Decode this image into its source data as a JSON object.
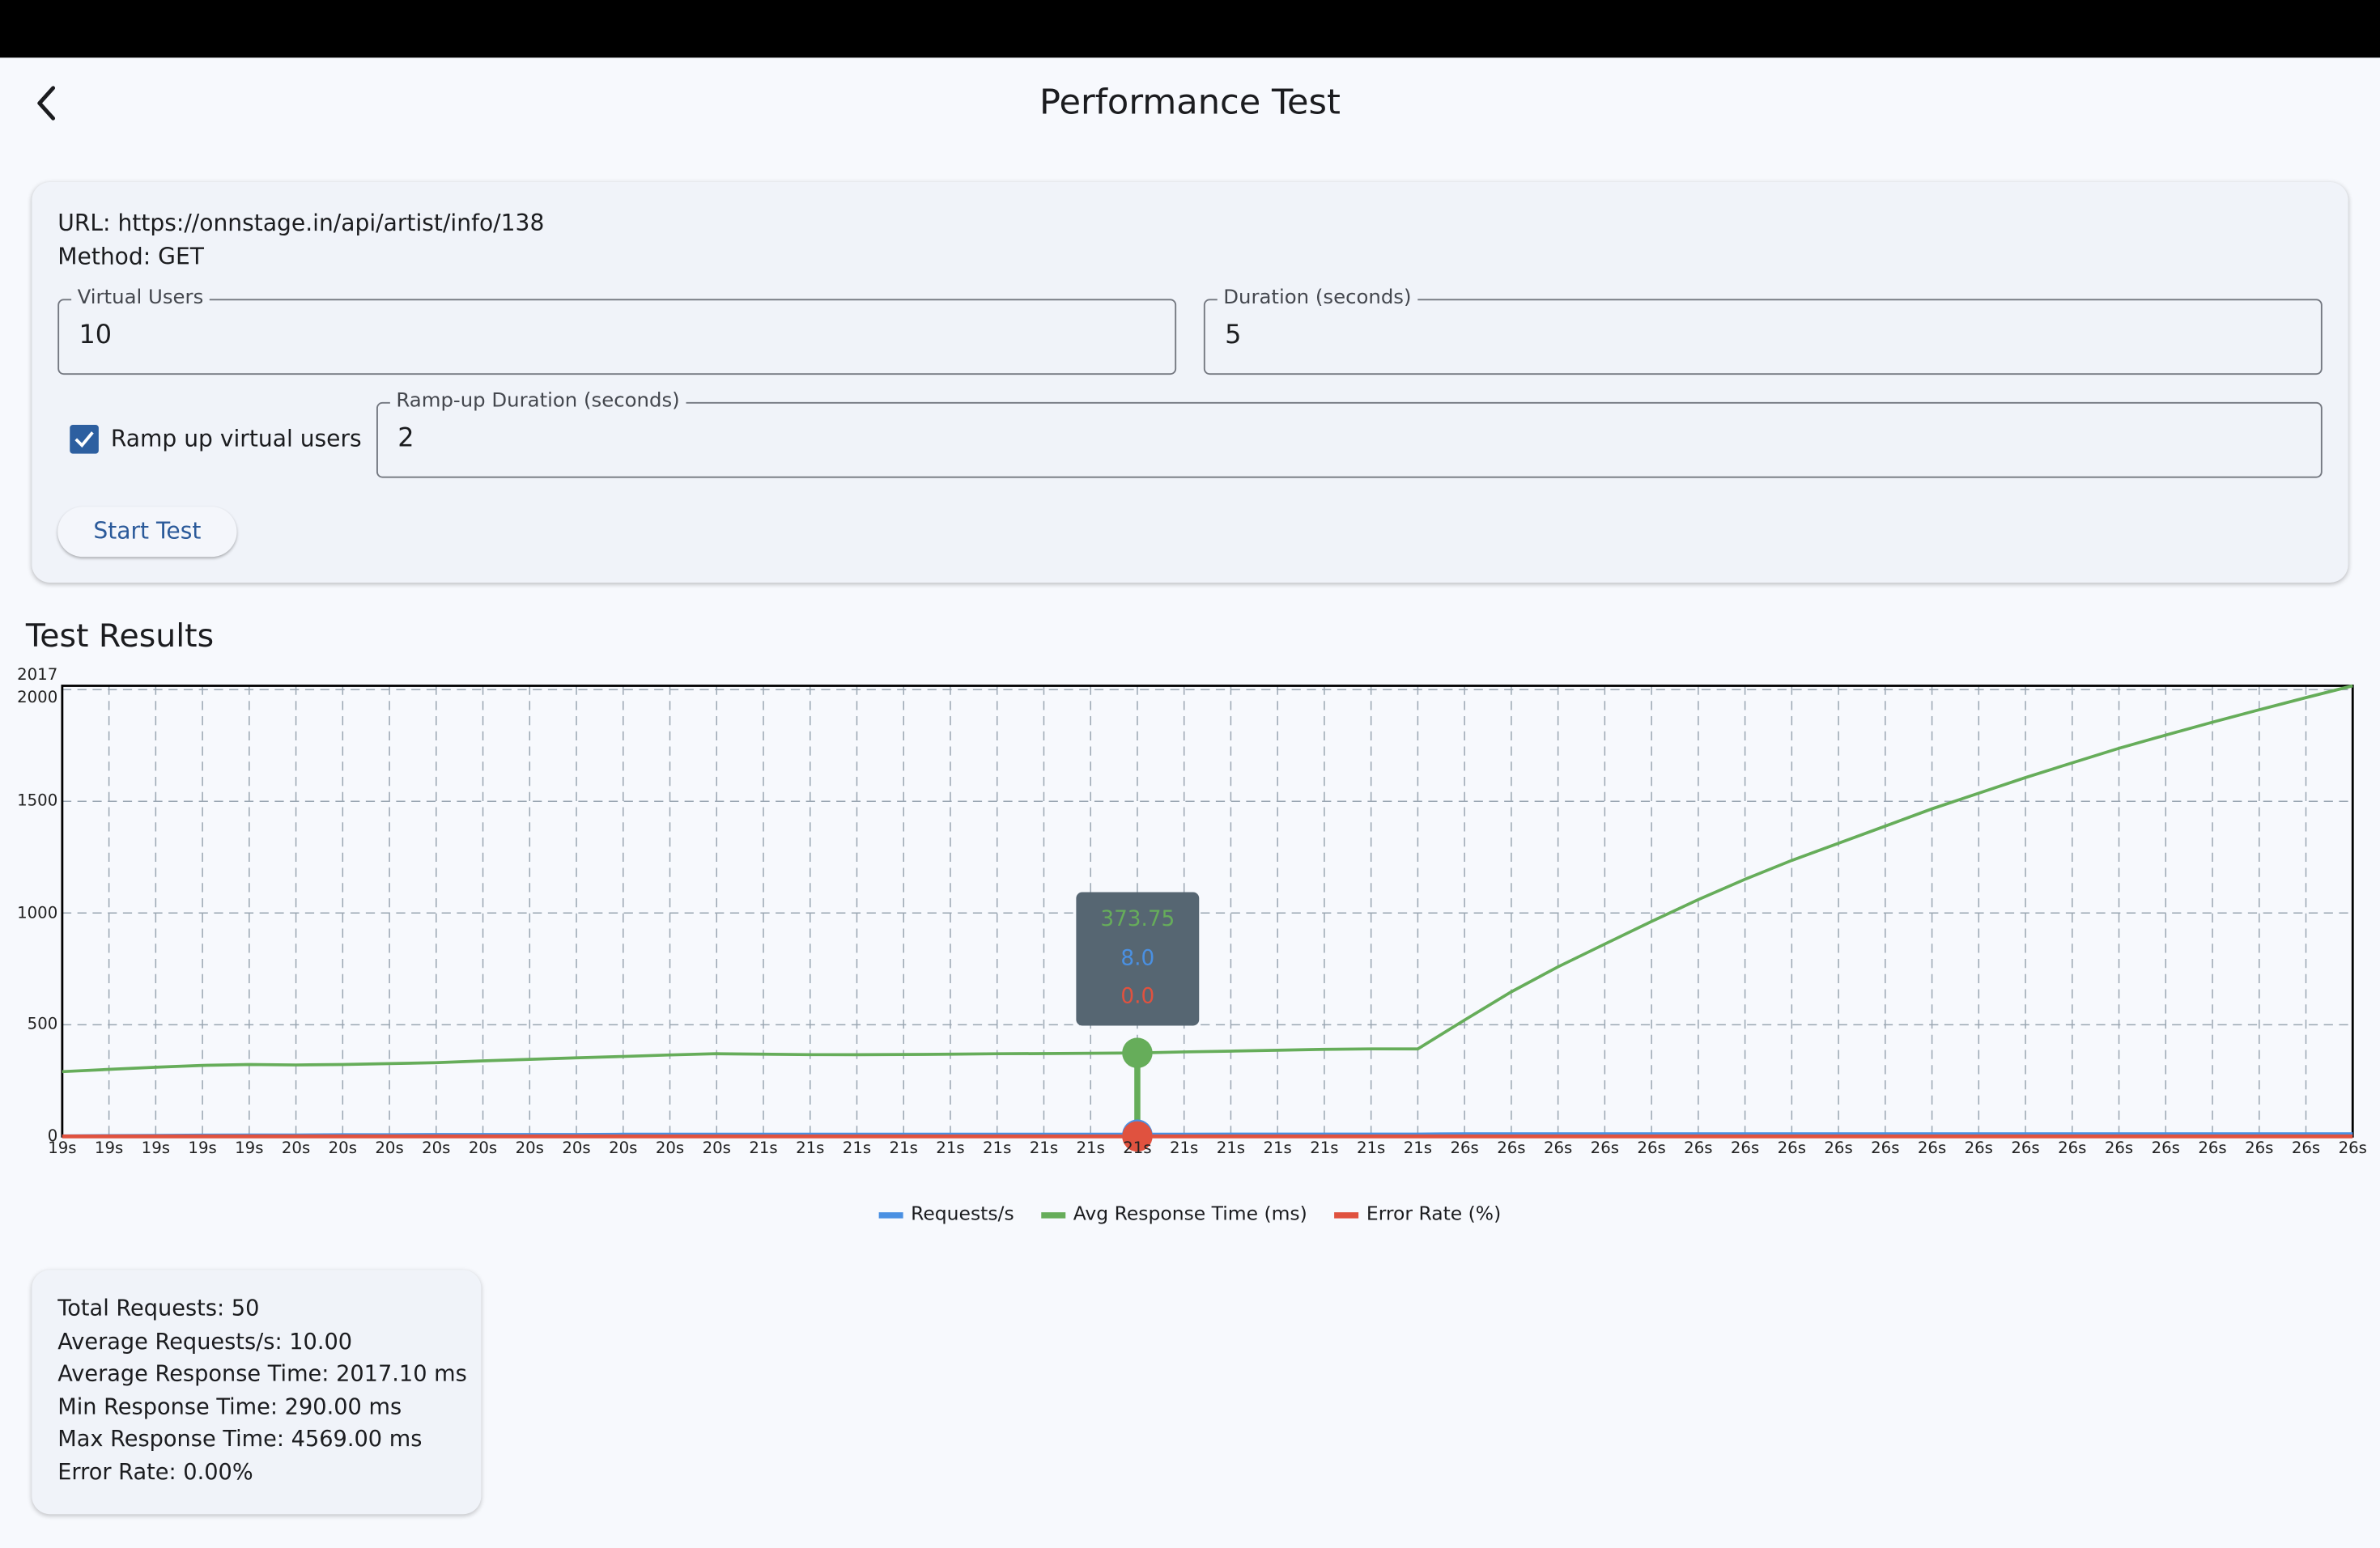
{
  "header": {
    "title": "Performance Test",
    "back_icon": "chevron-left-icon"
  },
  "config": {
    "url_line": "URL: https://onnstage.in/api/artist/info/138",
    "method_line": "Method: GET",
    "virtual_users": {
      "label": "Virtual Users",
      "value": "10"
    },
    "duration": {
      "label": "Duration (seconds)",
      "value": "5"
    },
    "ramp_checkbox": {
      "label": "Ramp up virtual users",
      "checked": true
    },
    "ramp_duration": {
      "label": "Ramp-up Duration (seconds)",
      "value": "2"
    },
    "start_button": "Start Test"
  },
  "results_title": "Test Results",
  "colors": {
    "requests": "#4a90e2",
    "response": "#66ad5a",
    "error": "#e0523f",
    "tooltip_bg": "#566672"
  },
  "chart_data": {
    "type": "line",
    "ylim": [
      0,
      2017
    ],
    "yticks": [
      "0",
      "500",
      "1000",
      "1500",
      "2000",
      "2017"
    ],
    "grid": true,
    "legend_placement": "bottom",
    "categories": [
      "19s",
      "19s",
      "19s",
      "19s",
      "19s",
      "20s",
      "20s",
      "20s",
      "20s",
      "20s",
      "20s",
      "20s",
      "20s",
      "20s",
      "20s",
      "21s",
      "21s",
      "21s",
      "21s",
      "21s",
      "21s",
      "21s",
      "21s",
      "21s",
      "21s",
      "21s",
      "21s",
      "21s",
      "21s",
      "21s",
      "26s",
      "26s",
      "26s",
      "26s",
      "26s",
      "26s",
      "26s",
      "26s",
      "26s",
      "26s",
      "26s",
      "26s",
      "26s",
      "26s",
      "26s",
      "26s",
      "26s",
      "26s",
      "26s",
      "26s"
    ],
    "series": [
      {
        "name": "Requests/s",
        "color": "#4a90e2",
        "values": [
          1,
          2,
          3,
          4,
          5,
          5,
          6,
          6,
          7,
          7,
          7,
          7,
          8,
          8,
          8,
          8,
          8,
          8,
          8,
          8,
          8,
          8,
          8,
          8,
          8,
          9,
          9,
          9,
          9,
          9,
          10,
          10,
          10,
          10,
          10,
          10,
          10,
          10,
          10,
          10,
          10,
          10,
          10,
          10,
          10,
          10,
          10,
          10,
          10,
          10
        ]
      },
      {
        "name": "Avg Response Time (ms)",
        "color": "#66ad5a",
        "values": [
          290,
          300,
          310,
          318,
          322,
          320,
          322,
          326,
          330,
          338,
          345,
          352,
          358,
          365,
          370,
          368,
          366,
          366,
          367,
          368,
          370,
          371,
          372,
          373.75,
          378,
          382,
          386,
          390,
          392,
          392,
          521,
          647,
          759,
          861,
          962,
          1060,
          1151,
          1235,
          1312,
          1389,
          1466,
          1536,
          1606,
          1672,
          1737,
          1796,
          1854,
          1910,
          1964,
          2017
        ]
      },
      {
        "name": "Error Rate (%)",
        "color": "#e0523f",
        "values": [
          0,
          0,
          0,
          0,
          0,
          0,
          0,
          0,
          0,
          0,
          0,
          0,
          0,
          0,
          0,
          0,
          0,
          0,
          0,
          0,
          0,
          0,
          0,
          0,
          0,
          0,
          0,
          0,
          0,
          0,
          0,
          0,
          0,
          0,
          0,
          0,
          0,
          0,
          0,
          0,
          0,
          0,
          0,
          0,
          0,
          0,
          0,
          0,
          0,
          0
        ]
      }
    ],
    "tooltip": {
      "index": 23,
      "values": [
        "373.75",
        "8.0",
        "0.0"
      ]
    }
  },
  "stats": [
    "Total Requests: 50",
    "Average Requests/s: 10.00",
    "Average Response Time: 2017.10 ms",
    "Min Response Time: 290.00 ms",
    "Max Response Time: 4569.00 ms",
    "Error Rate: 0.00%"
  ]
}
